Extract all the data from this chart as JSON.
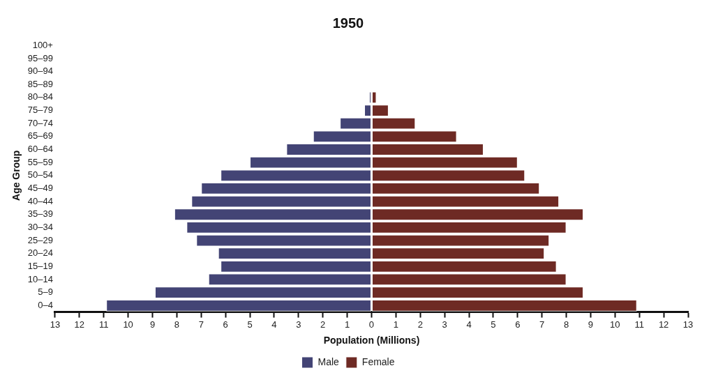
{
  "chart_data": {
    "type": "bar",
    "orientation": "horizontal",
    "stacked": true,
    "title": "1950",
    "xlabel": "Population (Millions)",
    "ylabel": "Age Group",
    "categories": [
      "100+",
      "95–99",
      "90–94",
      "85–89",
      "80–84",
      "75–79",
      "70–74",
      "65–69",
      "60–64",
      "55–59",
      "50–54",
      "45–49",
      "40–44",
      "35–39",
      "30–34",
      "25–29",
      "20–24",
      "15–19",
      "10–14",
      "5–9",
      "0–4"
    ],
    "series": [
      {
        "name": "Male",
        "color": "#434475",
        "values": [
          null,
          null,
          null,
          null,
          -0.1,
          -0.3,
          -1.3,
          -2.4,
          -3.5,
          -5.0,
          -6.2,
          -7.0,
          -7.4,
          -8.1,
          -7.6,
          -7.2,
          -6.3,
          -6.2,
          -6.7,
          -8.9,
          -10.9
        ]
      },
      {
        "name": "Female",
        "color": "#6e2a24",
        "values": [
          null,
          null,
          null,
          null,
          0.2,
          0.7,
          1.8,
          3.5,
          4.6,
          6.0,
          6.3,
          6.9,
          7.7,
          8.7,
          8.0,
          7.3,
          7.1,
          7.6,
          8.0,
          8.7,
          10.9
        ]
      }
    ],
    "xlim": [
      -13,
      13
    ],
    "xticks": [
      {
        "value": -13,
        "label": "13"
      },
      {
        "value": -12,
        "label": "12"
      },
      {
        "value": -11,
        "label": "11"
      },
      {
        "value": -10,
        "label": "10"
      },
      {
        "value": -9,
        "label": "9"
      },
      {
        "value": -8,
        "label": "8"
      },
      {
        "value": -7,
        "label": "7"
      },
      {
        "value": -6,
        "label": "6"
      },
      {
        "value": -5,
        "label": "5"
      },
      {
        "value": -4,
        "label": "4"
      },
      {
        "value": -3,
        "label": "3"
      },
      {
        "value": -2,
        "label": "2"
      },
      {
        "value": -1,
        "label": "1"
      },
      0,
      1,
      2,
      3,
      4,
      5,
      6,
      7,
      8,
      9,
      10,
      11,
      12,
      13
    ],
    "grid": false,
    "legend": "bottom"
  }
}
